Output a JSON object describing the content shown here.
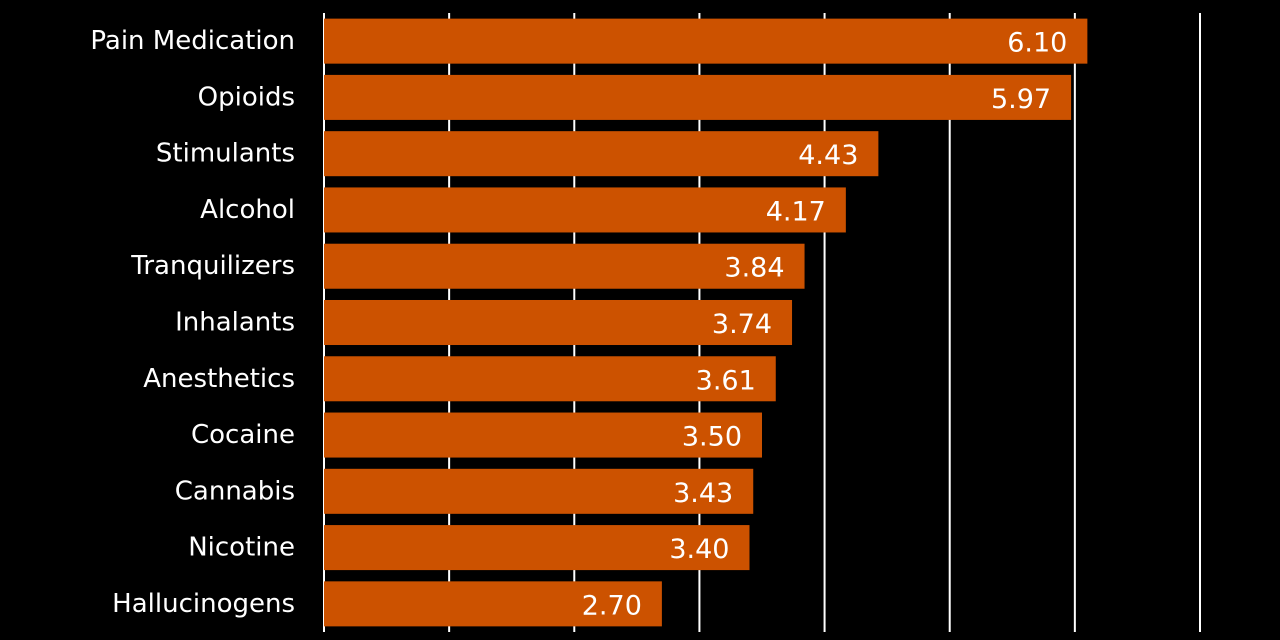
{
  "chart_data": {
    "type": "bar",
    "orientation": "horizontal",
    "categories": [
      "Pain Medication",
      "Opioids",
      "Stimulants",
      "Alcohol",
      "Tranquilizers",
      "Inhalants",
      "Anesthetics",
      "Cocaine",
      "Cannabis",
      "Nicotine",
      "Hallucinogens"
    ],
    "values": [
      6.1,
      5.97,
      4.43,
      4.17,
      3.84,
      3.74,
      3.61,
      3.5,
      3.43,
      3.4,
      2.7
    ],
    "value_labels": [
      "6.10",
      "5.97",
      "4.43",
      "4.17",
      "3.84",
      "3.74",
      "3.61",
      "3.50",
      "3.43",
      "3.40",
      "2.70"
    ],
    "color": "#cc5200",
    "xlim": [
      0,
      7
    ],
    "xticks": [
      0,
      1,
      2,
      3,
      4,
      5,
      6,
      7
    ],
    "grid": true
  }
}
